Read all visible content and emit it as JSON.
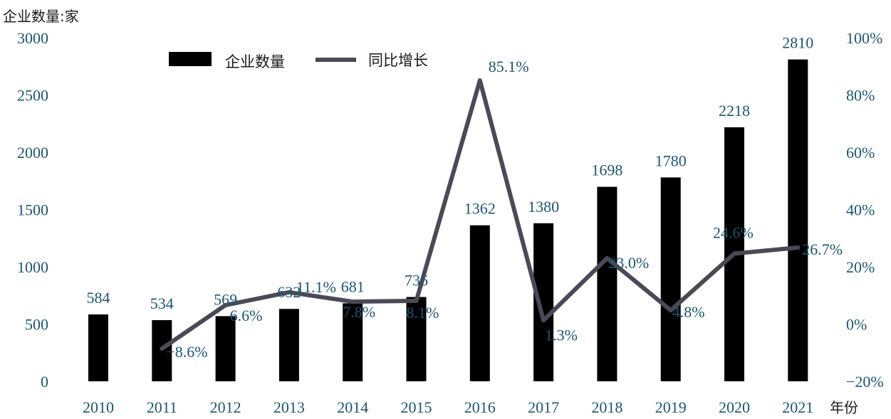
{
  "chart_data": {
    "type": "bar",
    "categories": [
      "2010",
      "2011",
      "2012",
      "2013",
      "2014",
      "2015",
      "2016",
      "2017",
      "2018",
      "2019",
      "2020",
      "2021"
    ],
    "series": [
      {
        "name": "企业数量",
        "type": "bar",
        "axis": "left",
        "values": [
          584,
          534,
          569,
          632,
          681,
          736,
          1362,
          1380,
          1698,
          1780,
          2218,
          2810
        ],
        "labels": [
          "584",
          "534",
          "569",
          "632",
          "681",
          "736",
          "1362",
          "1380",
          "1698",
          "1780",
          "2218",
          "2810"
        ]
      },
      {
        "name": "同比增长",
        "type": "line",
        "axis": "right",
        "values": [
          null,
          -8.6,
          6.6,
          11.1,
          7.8,
          8.1,
          85.1,
          1.3,
          23.0,
          4.8,
          24.6,
          26.7
        ],
        "labels": [
          "",
          "−8.6%",
          "6.6%",
          "11.1%",
          "7.8%",
          "8.1%",
          "85.1%",
          "1.3%",
          "23.0%",
          "4.8%",
          "24.6%",
          "26.7%"
        ]
      }
    ],
    "y_left": {
      "label": "企业数量:家",
      "ylim": [
        0,
        3000
      ],
      "ticks": [
        0,
        500,
        1000,
        1500,
        2000,
        2500,
        3000
      ],
      "tick_labels": [
        "0",
        "500",
        "1000",
        "1500",
        "2000",
        "2500",
        "3000"
      ]
    },
    "y_right": {
      "ylim": [
        -20,
        100
      ],
      "ticks": [
        -20,
        0,
        20,
        40,
        60,
        80,
        100
      ],
      "tick_labels": [
        "−20%",
        "0%",
        "20%",
        "40%",
        "60%",
        "80%",
        "100%"
      ]
    },
    "xlabel": "年份",
    "legend": {
      "placement": "top-left",
      "entries": [
        {
          "label": "企业数量"
        },
        {
          "label": "同比增长"
        }
      ]
    },
    "grid": false,
    "colors": {
      "bar": "#000000",
      "line": "#4a4a57",
      "label": "#1b5573"
    }
  }
}
